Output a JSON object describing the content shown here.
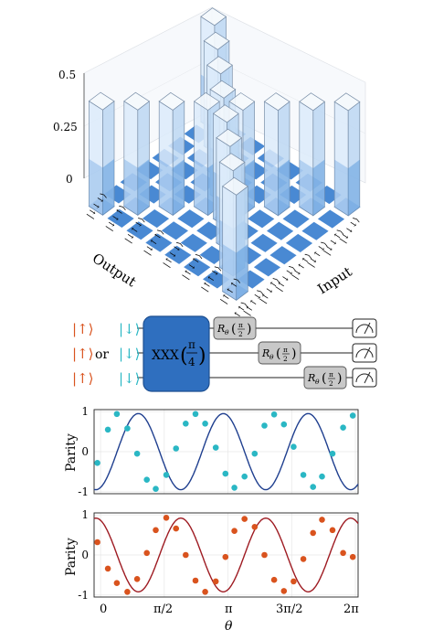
{
  "figure": {
    "panel_a": {
      "z_ticks": [
        "0.5",
        "0.25",
        "0"
      ],
      "output_label": "Output",
      "input_label": "Input",
      "output_states": [
        "|↓↓↓⟩",
        "|↓↓↑⟩",
        "|↓↑↓⟩",
        "|↓↑↑⟩",
        "|↑↓↓⟩",
        "|↑↓↑⟩",
        "|↑↑↓⟩",
        "|↑↑↑⟩"
      ],
      "input_states": [
        "|↑↑↑⟩",
        "|↑↑↓⟩",
        "|↑↓↑⟩",
        "|↑↓↓⟩",
        "|↓↑↑⟩",
        "|↓↑↓⟩",
        "|↓↓↑⟩",
        "|↓↓↓⟩"
      ],
      "colors": {
        "bar": "#4a90d9",
        "floor": "#3a7fcf",
        "wire": "#b9d2ee"
      }
    },
    "panel_b": {
      "input_orange": [
        "|↑⟩",
        "|↑⟩",
        "|↑⟩"
      ],
      "or_label": "or",
      "input_cyan": [
        "|↓⟩",
        "|↓⟩",
        "|↓⟩"
      ],
      "gate_label": "XXX",
      "gate_arg_num": "π",
      "gate_arg_den": "4",
      "rotation_label": "R",
      "rotation_sub": "θ",
      "rotation_arg_num": "π",
      "rotation_arg_den": "2",
      "colors": {
        "gate": "#2f6fbf",
        "rotation": "#c8c8c8",
        "orange": "#d9531e",
        "cyan": "#2ab7c4"
      }
    },
    "panel_c": {
      "ylabel": "Parity",
      "y_ticks": [
        "1",
        "0",
        "-1"
      ],
      "x_ticks": [
        "0",
        "π/2",
        "π",
        "3π/2",
        "2π"
      ],
      "xlabel": "θ"
    }
  },
  "chart_data": [
    {
      "type": "scatter",
      "title": "",
      "xlabel": "",
      "ylabel": "Parity",
      "xlim": [
        -0.16,
        6.35
      ],
      "ylim": [
        -1.05,
        1.05
      ],
      "x_ticks": [
        0,
        1.5708,
        3.1416,
        4.7124,
        6.2832
      ],
      "grid": true,
      "series": [
        {
          "kind": "fit",
          "color": "#1f3f8f",
          "amplitude": 0.95,
          "frequency": 3,
          "phase_deg": 200
        },
        {
          "kind": "points",
          "color": "#2ab7c4",
          "x": [
            -0.08,
            0.18,
            0.4,
            0.66,
            0.9,
            1.14,
            1.36,
            1.62,
            1.86,
            2.1,
            2.34,
            2.58,
            2.84,
            3.08,
            3.3,
            3.55,
            3.8,
            4.04,
            4.28,
            4.52,
            4.76,
            5.0,
            5.24,
            5.46,
            5.72,
            5.98,
            6.22
          ],
          "y": [
            -0.28,
            0.55,
            0.94,
            0.58,
            -0.05,
            -0.7,
            -0.93,
            -0.58,
            0.08,
            0.7,
            0.94,
            0.7,
            0.1,
            -0.55,
            -0.9,
            -0.62,
            -0.05,
            0.65,
            0.93,
            0.68,
            0.12,
            -0.58,
            -0.88,
            -0.62,
            -0.05,
            0.6,
            0.9
          ]
        }
      ]
    },
    {
      "type": "scatter",
      "title": "",
      "xlabel": "θ",
      "ylabel": "Parity",
      "xlim": [
        -0.16,
        6.35
      ],
      "ylim": [
        -1.05,
        1.05
      ],
      "x_ticks": [
        0,
        1.5708,
        3.1416,
        4.7124,
        6.2832
      ],
      "grid": true,
      "series": [
        {
          "kind": "fit",
          "color": "#9e1b22",
          "amplitude": 0.92,
          "frequency": 3,
          "phase_deg": 20
        },
        {
          "kind": "points",
          "color": "#d9531e",
          "x": [
            -0.08,
            0.18,
            0.4,
            0.66,
            0.9,
            1.14,
            1.36,
            1.62,
            1.86,
            2.1,
            2.34,
            2.58,
            2.84,
            3.08,
            3.3,
            3.55,
            3.8,
            4.04,
            4.28,
            4.52,
            4.76,
            5.0,
            5.24,
            5.46,
            5.72,
            5.98,
            6.22
          ],
          "y": [
            0.32,
            -0.34,
            -0.7,
            -0.92,
            -0.6,
            0.05,
            0.62,
            0.93,
            0.66,
            0.0,
            -0.64,
            -0.92,
            -0.66,
            -0.05,
            0.6,
            0.9,
            0.7,
            0.0,
            -0.62,
            -0.9,
            -0.66,
            -0.1,
            0.55,
            0.88,
            0.62,
            0.05,
            -0.05
          ]
        }
      ]
    }
  ]
}
